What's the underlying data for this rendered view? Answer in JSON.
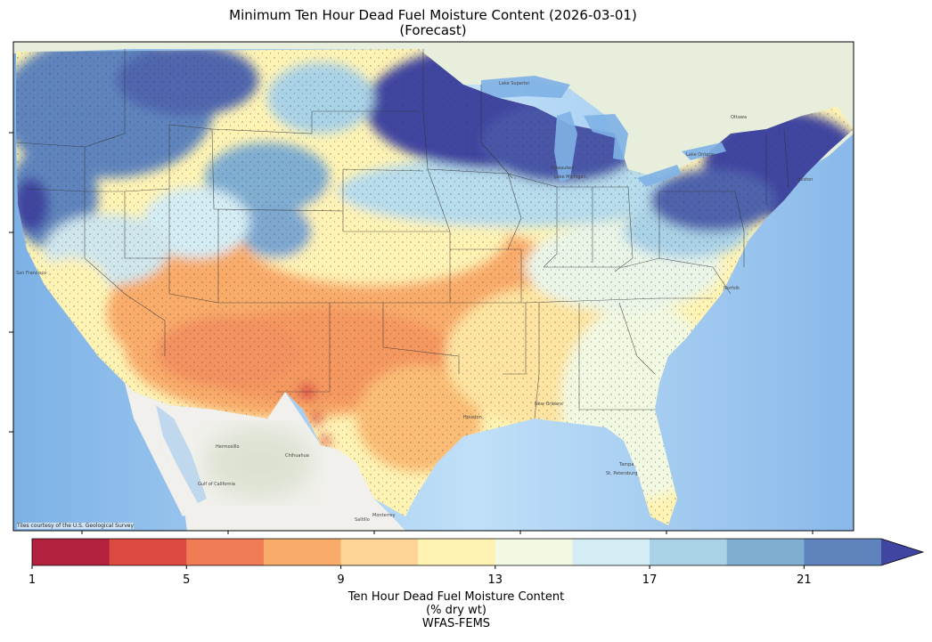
{
  "title_line1": "Minimum Ten Hour Dead Fuel Moisture Content (2026-03-01)",
  "title_line2": "(Forecast)",
  "credit": "Tiles courtesy of the U.S. Geological Survey",
  "colorbar": {
    "label_line1": "Ten Hour Dead Fuel Moisture Content",
    "label_line2": "(% dry wt)",
    "label_line3": "WFAS-FEMS",
    "ticks": [
      "1",
      "5",
      "9",
      "13",
      "17",
      "21"
    ],
    "tick_values": [
      1,
      5,
      9,
      13,
      17,
      21
    ],
    "range": [
      1,
      23
    ],
    "extend": "max",
    "colors": [
      "#b2223f",
      "#dc4a42",
      "#f07c56",
      "#f9ac6a",
      "#fed594",
      "#fff3b4",
      "#f2f9e2",
      "#d4ecf4",
      "#aad2e6",
      "#80aed1",
      "#5f84bd",
      "#3f45a0"
    ]
  },
  "map_labels": {
    "lake_superior": "Lake Superior",
    "milwaukee": "Milwaukee",
    "lake_michigan": "Lake Michigan",
    "ottawa": "Ottawa",
    "lake_ontario": "Lake Ontario",
    "boston": "Boston",
    "san_francisco": "San Francisco",
    "hermosillo": "Hermosillo",
    "chihuahua": "Chihuahua",
    "gulf_california": "Gulf of California",
    "monterrey": "Monterrey",
    "saltillo": "Saltillo",
    "st_petersburg": "St. Petersburg",
    "tampa": "Tampa",
    "houston": "Houston",
    "new_orleans": "New Orleans",
    "norfolk": "Norfolk"
  }
}
